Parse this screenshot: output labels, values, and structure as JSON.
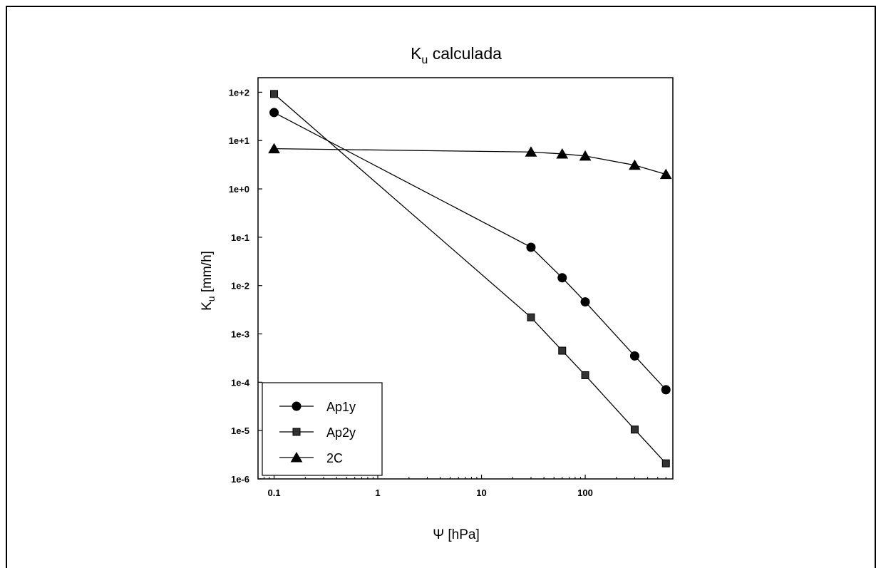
{
  "chart_data": {
    "type": "line",
    "title": {
      "main": "K",
      "sub": "u",
      "rest": " calculada"
    },
    "xlabel": "Ψ [hPa]",
    "ylabel": {
      "main": "K",
      "sub": "u",
      "rest": " [mm/h]"
    },
    "x_scale": "log",
    "y_scale": "log",
    "xlim": [
      0.07,
      700
    ],
    "ylim": [
      1e-06,
      200
    ],
    "x_ticks": [
      {
        "value": 0.1,
        "label": "0.1"
      },
      {
        "value": 1,
        "label": "1"
      },
      {
        "value": 10,
        "label": "10"
      },
      {
        "value": 100,
        "label": "100"
      }
    ],
    "y_ticks": [
      {
        "value": 100,
        "label": "1e+2"
      },
      {
        "value": 10,
        "label": "1e+1"
      },
      {
        "value": 1,
        "label": "1e+0"
      },
      {
        "value": 0.1,
        "label": "1e-1"
      },
      {
        "value": 0.01,
        "label": "1e-2"
      },
      {
        "value": 0.001,
        "label": "1e-3"
      },
      {
        "value": 0.0001,
        "label": "1e-4"
      },
      {
        "value": 1e-05,
        "label": "1e-5"
      },
      {
        "value": 1e-06,
        "label": "1e-6"
      }
    ],
    "grid": false,
    "legend_position": "bottom-left",
    "series": [
      {
        "name": "Ap1y",
        "marker": "circle",
        "color": "#000000",
        "points": [
          [
            0.1,
            38
          ],
          [
            30,
            0.062
          ],
          [
            60,
            0.0145
          ],
          [
            100,
            0.0046
          ],
          [
            300,
            0.00035
          ],
          [
            600,
            7e-05
          ]
        ]
      },
      {
        "name": "Ap2y",
        "marker": "square",
        "color": "#000000",
        "points": [
          [
            0.1,
            92
          ],
          [
            30,
            0.0022
          ],
          [
            60,
            0.00045
          ],
          [
            100,
            0.00014
          ],
          [
            300,
            1.05e-05
          ],
          [
            600,
            2.1e-06
          ]
        ]
      },
      {
        "name": "2C",
        "marker": "triangle",
        "color": "#000000",
        "points": [
          [
            0.1,
            6.8
          ],
          [
            30,
            5.8
          ],
          [
            60,
            5.3
          ],
          [
            100,
            4.8
          ],
          [
            300,
            3.1
          ],
          [
            600,
            2.0
          ]
        ]
      }
    ]
  }
}
